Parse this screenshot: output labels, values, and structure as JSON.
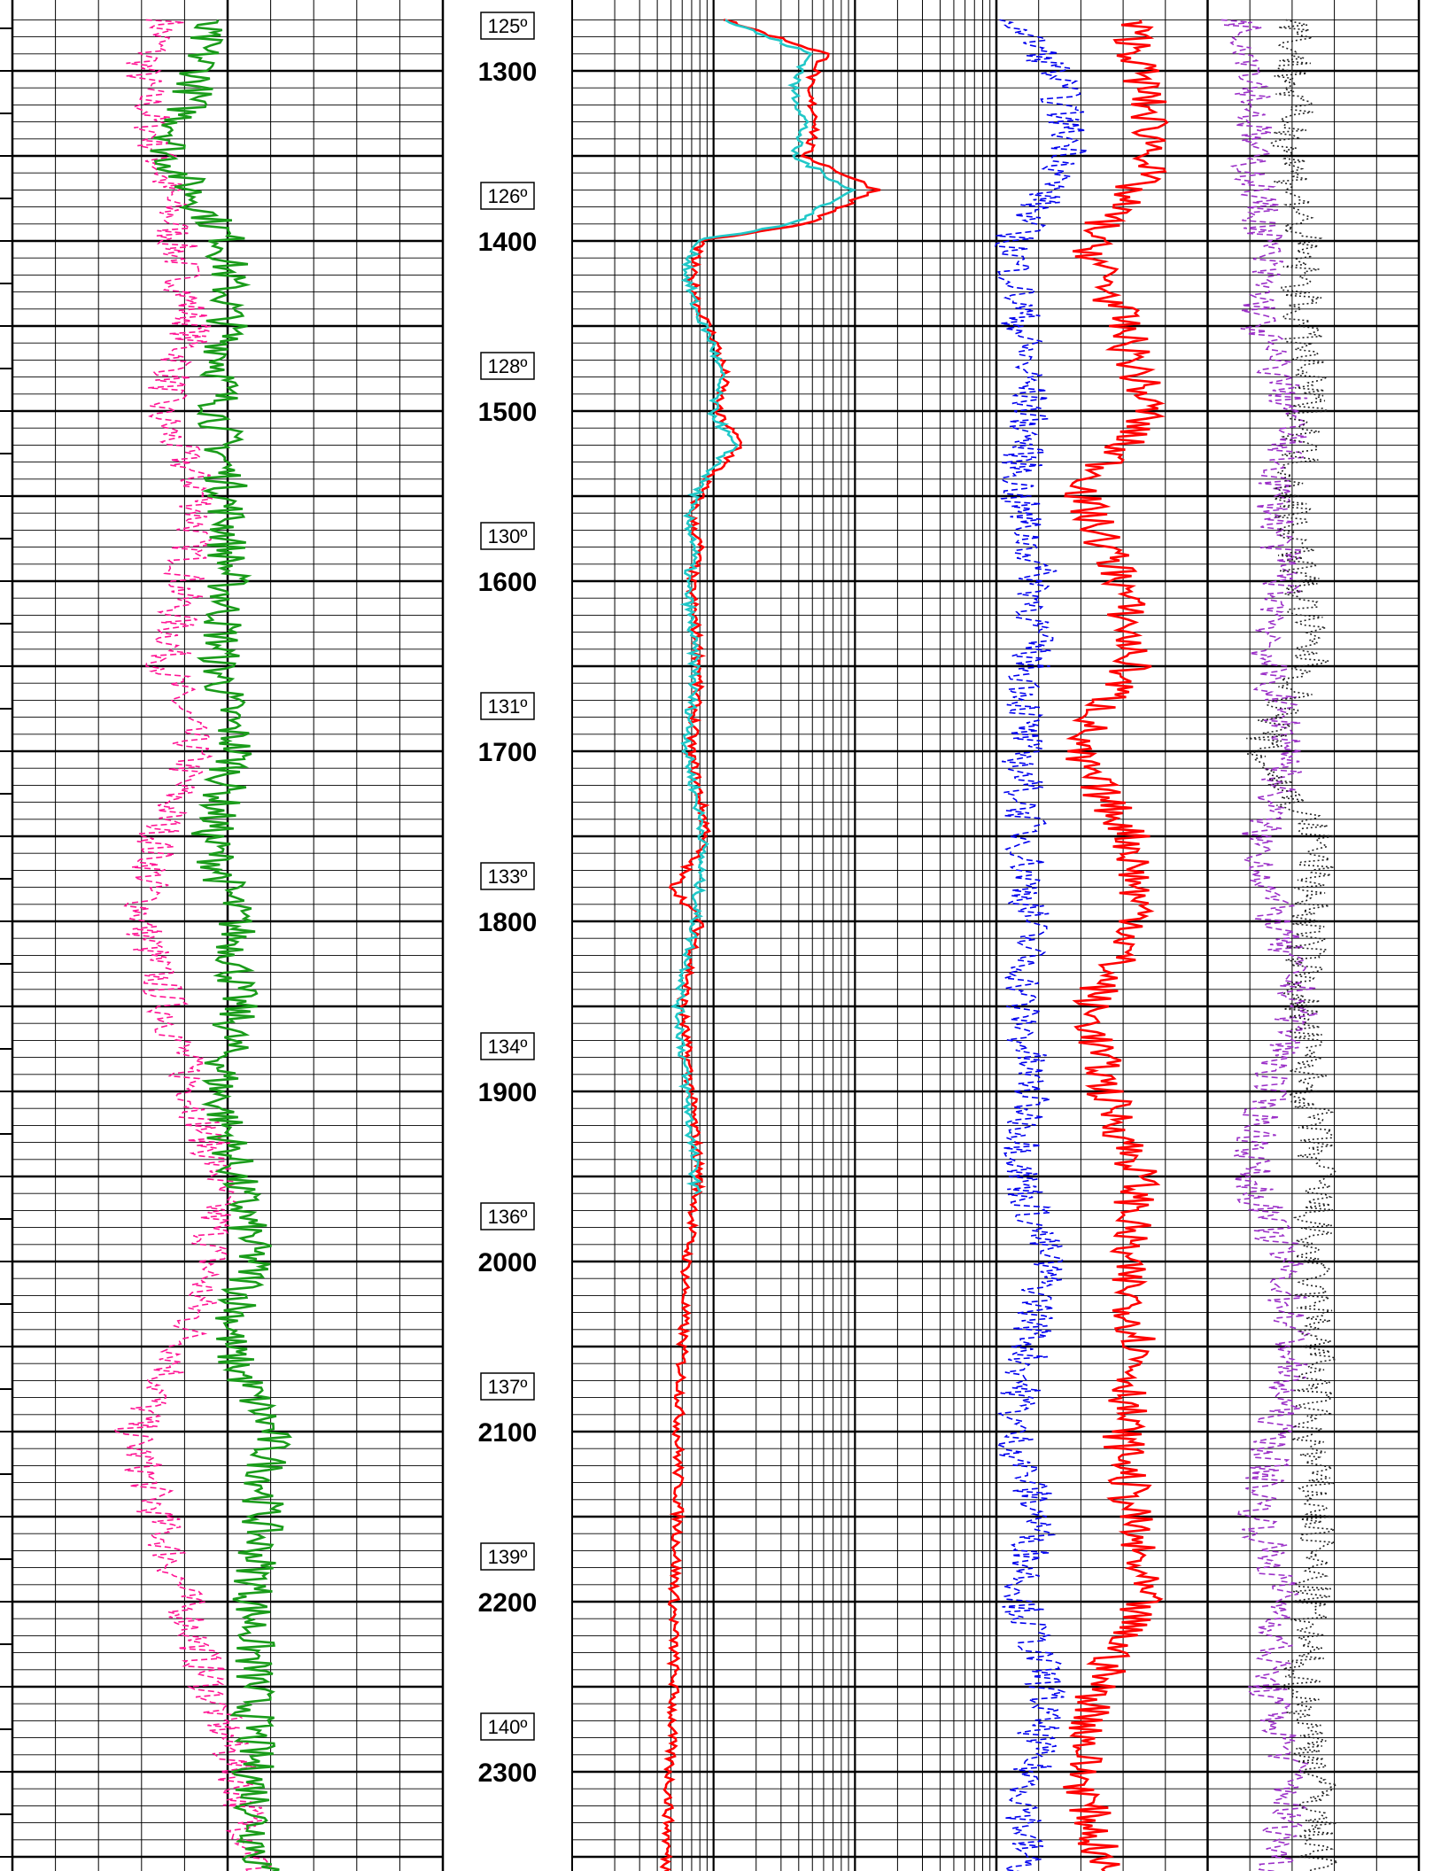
{
  "chart_data": {
    "type": "line",
    "title": "",
    "depth_axis": {
      "unit": "",
      "labels": [
        "1300",
        "1400",
        "1500",
        "1600",
        "1700",
        "1800",
        "1900",
        "2000",
        "2100",
        "2200",
        "2300"
      ],
      "range": [
        1270,
        2368
      ]
    },
    "temperature_annotations": [
      {
        "depth": 1275,
        "label": "125º"
      },
      {
        "depth": 1375,
        "label": "126º"
      },
      {
        "depth": 1475,
        "label": "128º"
      },
      {
        "depth": 1575,
        "label": "130º"
      },
      {
        "depth": 1675,
        "label": "131º"
      },
      {
        "depth": 1775,
        "label": "133º"
      },
      {
        "depth": 1875,
        "label": "134º"
      },
      {
        "depth": 1975,
        "label": "136º"
      },
      {
        "depth": 2075,
        "label": "137º"
      },
      {
        "depth": 2175,
        "label": "139º"
      },
      {
        "depth": 2275,
        "label": "140º"
      }
    ],
    "tracks": [
      {
        "name": "track-1",
        "scale": "linear",
        "series": [
          {
            "color": "#ff1493",
            "style": "dashed",
            "depth": [
              1270,
              1300,
              1350,
              1400,
              1450,
              1500,
              1550,
              1600,
              1650,
              1700,
              1750,
              1800,
              1850,
              1900,
              1950,
              2000,
              2050,
              2100,
              2150,
              2200,
              2250,
              2300,
              2368
            ],
            "values": [
              0.36,
              0.3,
              0.34,
              0.38,
              0.42,
              0.34,
              0.44,
              0.4,
              0.36,
              0.42,
              0.34,
              0.3,
              0.36,
              0.42,
              0.48,
              0.46,
              0.4,
              0.28,
              0.34,
              0.4,
              0.46,
              0.52,
              0.58
            ]
          },
          {
            "color": "#1a9c1a",
            "style": "solid",
            "depth": [
              1270,
              1300,
              1350,
              1400,
              1450,
              1500,
              1550,
              1600,
              1650,
              1700,
              1750,
              1800,
              1850,
              1900,
              1950,
              2000,
              2050,
              2100,
              2150,
              2200,
              2250,
              2300,
              2368
            ],
            "values": [
              0.44,
              0.44,
              0.36,
              0.5,
              0.5,
              0.48,
              0.5,
              0.5,
              0.48,
              0.52,
              0.46,
              0.52,
              0.52,
              0.48,
              0.52,
              0.56,
              0.5,
              0.6,
              0.58,
              0.56,
              0.56,
              0.56,
              0.58
            ]
          }
        ]
      },
      {
        "name": "track-2",
        "scale": "logarithmic",
        "series": [
          {
            "color": "#ff0000",
            "style": "solid",
            "depth": [
              1270,
              1290,
              1310,
              1330,
              1350,
              1370,
              1390,
              1400,
              1420,
              1440,
              1460,
              1480,
              1500,
              1520,
              1540,
              1560,
              1580,
              1600,
              1650,
              1700,
              1750,
              1780,
              1800,
              1850,
              1900,
              1950,
              2000,
              2050,
              2100,
              2150,
              2200,
              2250,
              2300,
              2368
            ],
            "values": [
              0.36,
              0.6,
              0.55,
              0.58,
              0.55,
              0.72,
              0.55,
              0.3,
              0.28,
              0.3,
              0.34,
              0.36,
              0.34,
              0.4,
              0.32,
              0.28,
              0.3,
              0.28,
              0.3,
              0.28,
              0.32,
              0.24,
              0.3,
              0.26,
              0.28,
              0.3,
              0.27,
              0.26,
              0.25,
              0.25,
              0.24,
              0.24,
              0.23,
              0.22
            ]
          },
          {
            "color": "#20c8c8",
            "style": "solid",
            "depth": [
              1270,
              1290,
              1310,
              1330,
              1350,
              1370,
              1390,
              1400,
              1420,
              1440,
              1460,
              1480,
              1500,
              1520,
              1540,
              1560,
              1580,
              1600,
              1650,
              1700,
              1750,
              1800,
              1850,
              1900,
              1950,
              1960
            ],
            "values": [
              0.36,
              0.56,
              0.52,
              0.55,
              0.52,
              0.66,
              0.52,
              0.29,
              0.27,
              0.29,
              0.33,
              0.35,
              0.33,
              0.38,
              0.31,
              0.27,
              0.29,
              0.27,
              0.29,
              0.27,
              0.31,
              0.29,
              0.25,
              0.27,
              0.29,
              0.29
            ]
          }
        ]
      },
      {
        "name": "track-3",
        "scale": "linear",
        "series": [
          {
            "color": "#0000ee",
            "style": "dashed",
            "depth": [
              1270,
              1300,
              1350,
              1400,
              1450,
              1500,
              1550,
              1600,
              1650,
              1700,
              1750,
              1800,
              1850,
              1900,
              1950,
              2000,
              2050,
              2100,
              2150,
              2200,
              2250,
              2300,
              2368
            ],
            "values": [
              0.04,
              0.14,
              0.18,
              0.04,
              0.06,
              0.08,
              0.05,
              0.1,
              0.08,
              0.06,
              0.07,
              0.08,
              0.06,
              0.08,
              0.06,
              0.12,
              0.08,
              0.04,
              0.1,
              0.06,
              0.12,
              0.08,
              0.06
            ]
          },
          {
            "color": "#ff0000",
            "style": "solid",
            "depth": [
              1270,
              1300,
              1350,
              1400,
              1450,
              1500,
              1550,
              1600,
              1650,
              1700,
              1750,
              1800,
              1850,
              1900,
              1950,
              2000,
              2050,
              2100,
              2150,
              2200,
              2250,
              2300,
              2368
            ],
            "values": [
              0.32,
              0.34,
              0.38,
              0.22,
              0.3,
              0.36,
              0.2,
              0.3,
              0.32,
              0.18,
              0.32,
              0.34,
              0.22,
              0.26,
              0.34,
              0.3,
              0.34,
              0.3,
              0.32,
              0.34,
              0.24,
              0.2,
              0.26
            ]
          },
          {
            "color": "#9b30c8",
            "style": "dashed",
            "depth": [
              1270,
              1300,
              1350,
              1400,
              1450,
              1500,
              1550,
              1600,
              1650,
              1700,
              1750,
              1800,
              1850,
              1900,
              1950,
              2000,
              2050,
              2100,
              2150,
              2200,
              2250,
              2300,
              2368
            ],
            "values": [
              0.58,
              0.62,
              0.6,
              0.64,
              0.62,
              0.7,
              0.66,
              0.68,
              0.64,
              0.7,
              0.62,
              0.66,
              0.72,
              0.64,
              0.6,
              0.68,
              0.7,
              0.66,
              0.62,
              0.68,
              0.64,
              0.7,
              0.66
            ]
          },
          {
            "color": "#222222",
            "style": "dotted",
            "depth": [
              1270,
              1300,
              1350,
              1400,
              1450,
              1500,
              1550,
              1600,
              1650,
              1700,
              1750,
              1800,
              1850,
              1900,
              1950,
              2000,
              2050,
              2100,
              2150,
              2200,
              2250,
              2300,
              2368
            ],
            "values": [
              0.72,
              0.7,
              0.7,
              0.72,
              0.72,
              0.74,
              0.7,
              0.72,
              0.74,
              0.62,
              0.76,
              0.74,
              0.72,
              0.74,
              0.76,
              0.74,
              0.76,
              0.74,
              0.76,
              0.74,
              0.72,
              0.76,
              0.76
            ]
          }
        ]
      }
    ],
    "colors": {
      "grid": "#000000",
      "background": "#ffffff"
    }
  }
}
